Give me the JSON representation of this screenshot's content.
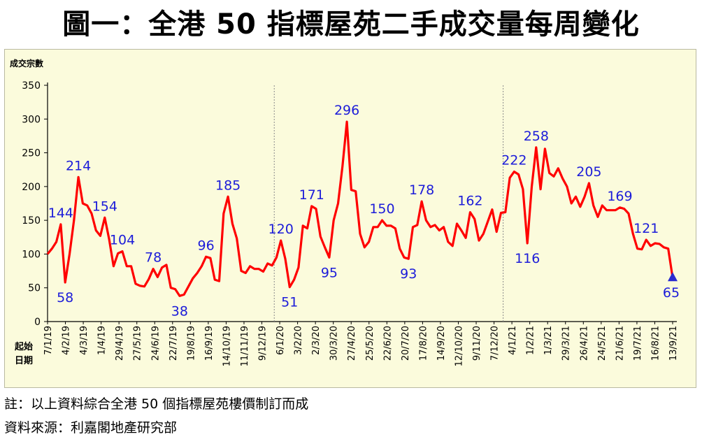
{
  "title": "圖一：全港 50 指標屋苑二手成交量每周變化",
  "notes": {
    "line1": "註：以上資料綜合全港 50 個指標屋苑樓價制訂而成",
    "line2": "資料來源：利嘉閣地產研究部"
  },
  "colors": {
    "line": "#ff0000",
    "label": "#1c1cd9",
    "background": "#fbfbdc",
    "marker": "#2a2ad0"
  },
  "chart_data": {
    "type": "line",
    "ylabel": "成交宗數",
    "xlabel": "起始日期",
    "xlabel_lines": [
      "起始",
      "日期"
    ],
    "ylim": [
      0,
      350
    ],
    "yticks": [
      0,
      50,
      100,
      150,
      200,
      250,
      300,
      350
    ],
    "grid": false,
    "year_dividers_after_index": [
      51,
      103
    ],
    "x_tick_labels": [
      "7/1/19",
      "4/2/19",
      "4/3/19",
      "1/4/19",
      "29/4/19",
      "27/5/19",
      "24/6/19",
      "22/7/19",
      "19/8/19",
      "16/9/19",
      "14/10/19",
      "11/11/19",
      "9/12/19",
      "6/1/20",
      "3/2/20",
      "2/3/20",
      "30/3/20",
      "27/4/20",
      "25/5/20",
      "22/6/20",
      "20/7/20",
      "17/8/20",
      "14/9/20",
      "12/10/20",
      "9/11/20",
      "7/12/20",
      "4/1/21",
      "1/2/21",
      "1/3/21",
      "29/3/21",
      "26/4/21",
      "24/5/21",
      "21/6/21",
      "19/7/21",
      "16/8/21",
      "13/9/21"
    ],
    "values": [
      100,
      108,
      118,
      144,
      58,
      100,
      150,
      214,
      175,
      172,
      160,
      135,
      127,
      154,
      122,
      82,
      101,
      104,
      82,
      82,
      56,
      53,
      52,
      63,
      78,
      66,
      80,
      84,
      50,
      48,
      38,
      40,
      52,
      64,
      72,
      82,
      96,
      94,
      62,
      60,
      160,
      185,
      145,
      123,
      75,
      72,
      82,
      78,
      78,
      74,
      86,
      83,
      95,
      120,
      93,
      51,
      62,
      80,
      142,
      138,
      171,
      167,
      126,
      110,
      95,
      150,
      175,
      230,
      296,
      195,
      193,
      130,
      110,
      118,
      140,
      140,
      150,
      142,
      142,
      138,
      108,
      95,
      93,
      140,
      143,
      178,
      150,
      140,
      143,
      135,
      140,
      118,
      112,
      145,
      135,
      124,
      162,
      152,
      120,
      130,
      148,
      166,
      133,
      161,
      162,
      213,
      222,
      218,
      196,
      116,
      200,
      258,
      196,
      256,
      220,
      215,
      227,
      212,
      200,
      175,
      185,
      170,
      185,
      205,
      172,
      155,
      172,
      165,
      165,
      165,
      169,
      167,
      160,
      130,
      108,
      107,
      121,
      112,
      116,
      115,
      110,
      108,
      65
    ],
    "point_labels": [
      {
        "index": 3,
        "text": "144",
        "pos": "above"
      },
      {
        "index": 4,
        "text": "58",
        "pos": "below"
      },
      {
        "index": 7,
        "text": "214",
        "pos": "above"
      },
      {
        "index": 13,
        "text": "154",
        "pos": "above"
      },
      {
        "index": 17,
        "text": "104",
        "pos": "above"
      },
      {
        "index": 24,
        "text": "78",
        "pos": "above"
      },
      {
        "index": 30,
        "text": "38",
        "pos": "below"
      },
      {
        "index": 36,
        "text": "96",
        "pos": "above"
      },
      {
        "index": 41,
        "text": "185",
        "pos": "above"
      },
      {
        "index": 53,
        "text": "120",
        "pos": "above"
      },
      {
        "index": 55,
        "text": "51",
        "pos": "below"
      },
      {
        "index": 60,
        "text": "171",
        "pos": "above"
      },
      {
        "index": 64,
        "text": "95",
        "pos": "below"
      },
      {
        "index": 68,
        "text": "296",
        "pos": "above"
      },
      {
        "index": 76,
        "text": "150",
        "pos": "above"
      },
      {
        "index": 82,
        "text": "93",
        "pos": "below"
      },
      {
        "index": 85,
        "text": "178",
        "pos": "above"
      },
      {
        "index": 96,
        "text": "162",
        "pos": "above"
      },
      {
        "index": 106,
        "text": "222",
        "pos": "above"
      },
      {
        "index": 109,
        "text": "116",
        "pos": "below"
      },
      {
        "index": 111,
        "text": "258",
        "pos": "above"
      },
      {
        "index": 123,
        "text": "205",
        "pos": "above"
      },
      {
        "index": 130,
        "text": "169",
        "pos": "above"
      },
      {
        "index": 136,
        "text": "121",
        "pos": "above"
      },
      {
        "index": 142,
        "text": "65",
        "pos": "below"
      }
    ],
    "end_marker": {
      "index": 142,
      "shape": "triangle"
    }
  }
}
